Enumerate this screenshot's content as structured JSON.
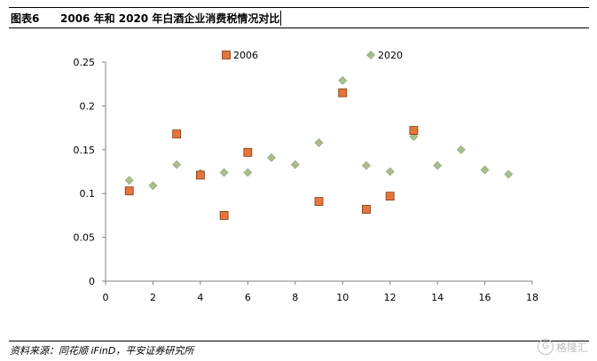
{
  "header": {
    "figure_label": "图表6",
    "title": "2006 年和 2020 年白酒企业消费税情况对比"
  },
  "footer": {
    "source": "资料来源：同花顺 iFinD，平安证券研究所",
    "watermark": "格隆汇"
  },
  "colors": {
    "series_2006": "#e8743b",
    "series_2006_stroke": "#7a3a10",
    "series_2020": "#a9bd8e",
    "series_2020_stroke": "#8da070",
    "axis": "#808080"
  },
  "chart_data": {
    "type": "scatter",
    "title": "",
    "xlabel": "",
    "ylabel": "",
    "xlim": [
      0,
      18
    ],
    "ylim": [
      0,
      0.25
    ],
    "x_ticks": [
      0,
      2,
      4,
      6,
      8,
      10,
      12,
      14,
      16,
      18
    ],
    "y_ticks": [
      0,
      0.05,
      0.1,
      0.15,
      0.2,
      0.25
    ],
    "x_tick_labels": [
      "0",
      "2",
      "4",
      "6",
      "8",
      "10",
      "12",
      "14",
      "16",
      "18"
    ],
    "y_tick_labels": [
      "0",
      "0.05",
      "0.1",
      "0.15",
      "0.2",
      "0.25"
    ],
    "grid": false,
    "legend_position": "top",
    "series": [
      {
        "name": "2006",
        "marker": "square",
        "x": [
          1,
          3,
          4,
          5,
          6,
          9,
          10,
          11,
          12,
          13
        ],
        "y": [
          0.103,
          0.168,
          0.121,
          0.075,
          0.147,
          0.091,
          0.215,
          0.082,
          0.097,
          0.172
        ]
      },
      {
        "name": "2020",
        "marker": "diamond",
        "x": [
          1,
          2,
          3,
          4,
          5,
          6,
          7,
          8,
          9,
          10,
          11,
          12,
          13,
          14,
          15,
          16,
          17
        ],
        "y": [
          0.115,
          0.109,
          0.133,
          0.123,
          0.124,
          0.124,
          0.141,
          0.133,
          0.158,
          0.229,
          0.132,
          0.125,
          0.165,
          0.132,
          0.15,
          0.127,
          0.122
        ]
      }
    ]
  }
}
